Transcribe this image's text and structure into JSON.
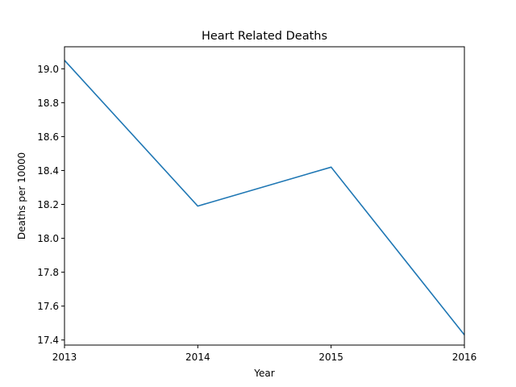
{
  "chart_data": {
    "type": "line",
    "title": "Heart Related Deaths",
    "xlabel": "Year",
    "ylabel": "Deaths per 10000",
    "x": [
      2013,
      2014,
      2015,
      2016
    ],
    "xticks": [
      "2013",
      "2014",
      "2015",
      "2016"
    ],
    "xlim": [
      2013,
      2016
    ],
    "yticks": [
      "17.4",
      "17.6",
      "17.8",
      "18.0",
      "18.2",
      "18.4",
      "18.6",
      "18.8",
      "19.0"
    ],
    "ylim": [
      17.37,
      19.13
    ],
    "grid": false,
    "series": [
      {
        "values": [
          19.05,
          18.19,
          18.42,
          17.43
        ],
        "color": "#1f77b4"
      }
    ]
  }
}
